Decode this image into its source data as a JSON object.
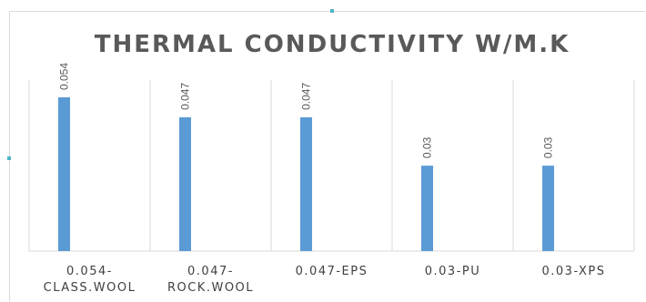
{
  "chart_data": {
    "type": "bar",
    "title": "THERMAL CONDUCTIVITY W/M.K",
    "categories": [
      "0.054-CLASS.WOOL",
      "0.047-ROCK.WOOL",
      "0.047-EPS",
      "0.03-PU",
      "0.03-XPS"
    ],
    "category_label_lines": [
      [
        "0.054-",
        "CLASS.WOOL"
      ],
      [
        "0.047-",
        "ROCK.WOOL"
      ],
      [
        "0.047-EPS"
      ],
      [
        "0.03-PU"
      ],
      [
        "0.03-XPS"
      ]
    ],
    "values": [
      0.054,
      0.047,
      0.047,
      0.03,
      0.03
    ],
    "data_labels": [
      "0.054",
      "0.047",
      "0.047",
      "0.03",
      "0.03"
    ],
    "ylim": [
      0,
      0.054
    ],
    "grid": "vertical category separators",
    "legend": "none",
    "bar_color": "#5b9bd5"
  }
}
